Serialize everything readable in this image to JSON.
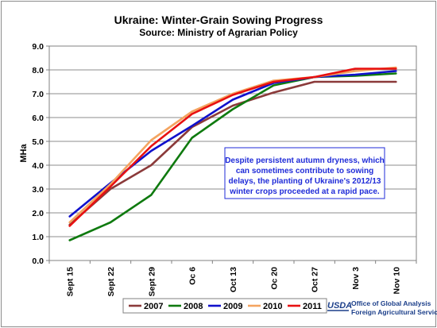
{
  "chart_data": {
    "type": "line",
    "title": "Ukraine:  Winter-Grain Sowing Progress",
    "subtitle": "Source:  Ministry of Agrarian Policy",
    "ylabel": "MHa",
    "xlabel": "",
    "ylim": [
      0,
      9
    ],
    "yticks": [
      "0.0",
      "1.0",
      "2.0",
      "3.0",
      "4.0",
      "5.0",
      "6.0",
      "7.0",
      "8.0",
      "9.0"
    ],
    "grid": true,
    "legend_position": "bottom",
    "categories": [
      "Sept 15",
      "Sept 22",
      "Sept 29",
      "Oc 6",
      "Oct 13",
      "Oc 20",
      "Oct 27",
      "Nov 3",
      "Nov 10"
    ],
    "series": [
      {
        "name": "2007",
        "color": "#8b3a3a",
        "values": [
          1.5,
          3.0,
          4.0,
          5.6,
          6.5,
          7.05,
          7.5,
          7.5,
          7.5
        ]
      },
      {
        "name": "2008",
        "color": "#0f7a0f",
        "values": [
          0.85,
          1.6,
          2.75,
          5.15,
          6.35,
          7.35,
          7.7,
          7.75,
          7.85
        ]
      },
      {
        "name": "2009",
        "color": "#1010cc",
        "values": [
          1.85,
          3.25,
          4.6,
          5.65,
          6.75,
          7.45,
          7.7,
          7.8,
          7.95
        ]
      },
      {
        "name": "2010",
        "color": "#f4a460",
        "values": [
          1.6,
          3.2,
          5.05,
          6.25,
          7.0,
          7.55,
          7.7,
          7.95,
          8.1
        ]
      },
      {
        "name": "2011",
        "color": "#e81010",
        "values": [
          1.45,
          3.1,
          4.8,
          6.15,
          6.95,
          7.5,
          7.7,
          8.05,
          8.05
        ]
      }
    ],
    "annotation": [
      "Despite persistent autumn dryness, which",
      "can sometimes  contribute to sowing",
      "delays, the planting of Ukraine's 2012/13",
      "winter crops proceeded at a rapid pace."
    ]
  },
  "footer": {
    "logo": "USDA",
    "line1": "Office of Global Analysis",
    "line2": "Foreign Agricultural Service"
  }
}
